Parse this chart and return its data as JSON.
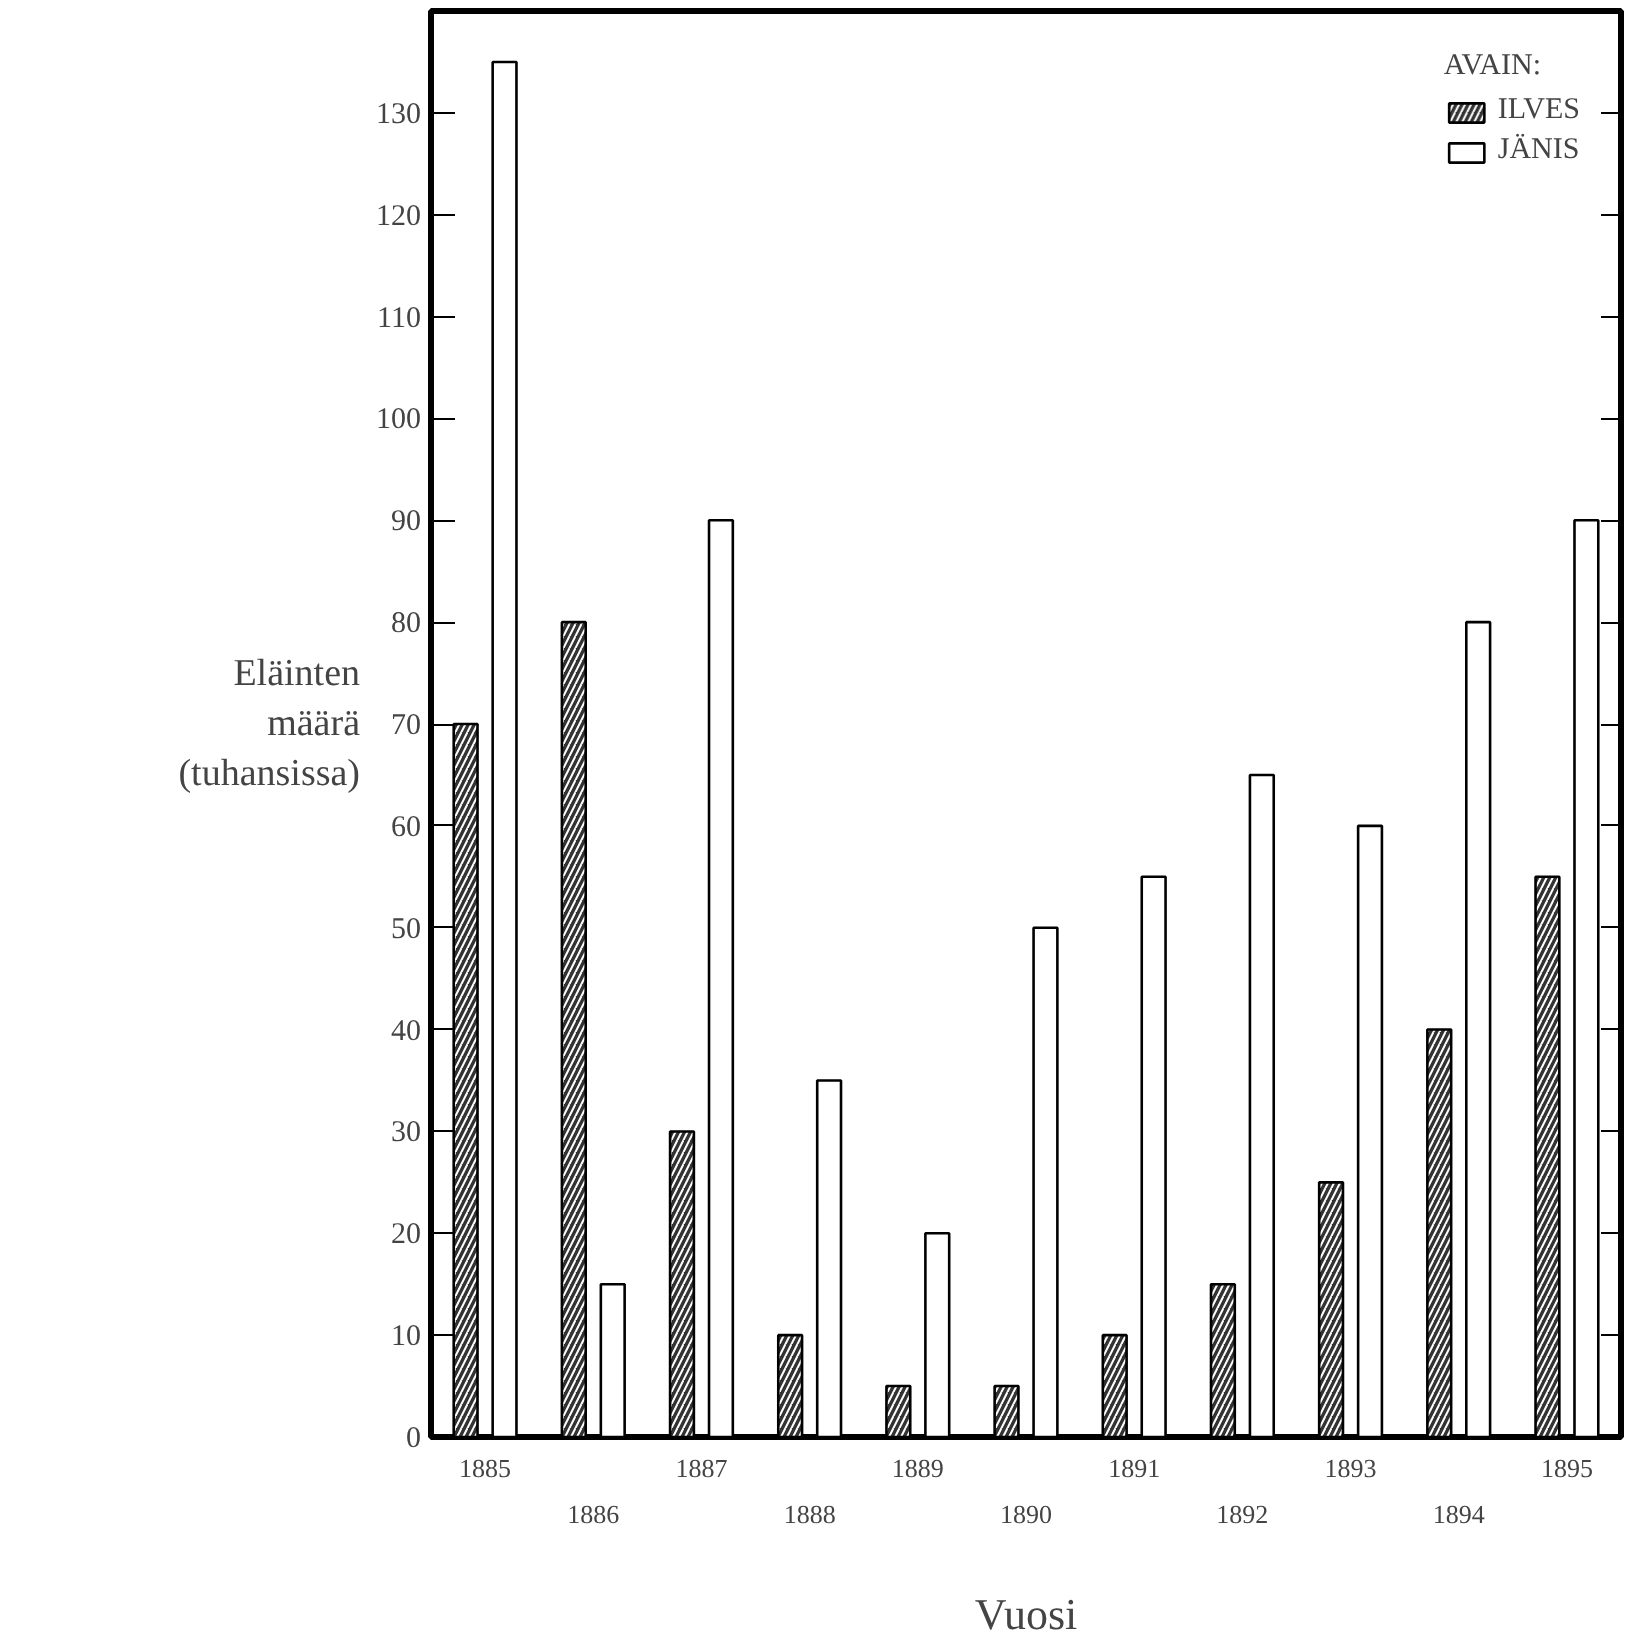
{
  "chart_data": {
    "type": "bar",
    "xlabel": "Vuosi",
    "ylabel": "Eläinten määrä (tuhansissa)",
    "legend_title": "AVAIN:",
    "legend": "top right",
    "grid": false,
    "categories": [
      "1885",
      "1886",
      "1887",
      "1888",
      "1889",
      "1890",
      "1891",
      "1892",
      "1893",
      "1894",
      "1895"
    ],
    "series": [
      {
        "name": "ILVES",
        "color": "#333333",
        "values": [
          70,
          80,
          30,
          10,
          5,
          5,
          10,
          15,
          25,
          40,
          55
        ]
      },
      {
        "name": "JÄNIS",
        "color": "#ffffff",
        "values": [
          135,
          15,
          90,
          35,
          20,
          50,
          55,
          65,
          60,
          80,
          90
        ]
      }
    ],
    "ylim": [
      0,
      140
    ],
    "yticks": [
      0,
      10,
      20,
      30,
      40,
      50,
      60,
      70,
      80,
      90,
      100,
      110,
      120,
      130
    ]
  }
}
